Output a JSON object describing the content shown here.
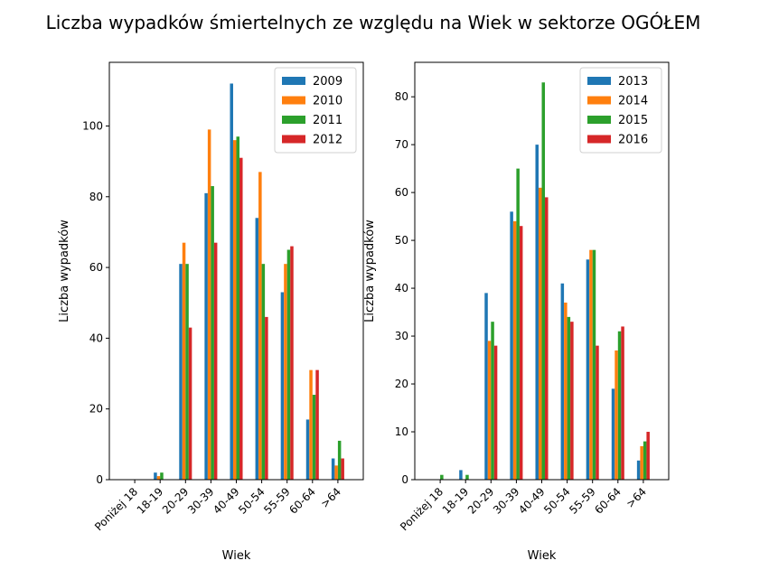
{
  "figure": {
    "title": "Liczba wypadków śmiertelnych ze względu na Wiek w sektorze OGÓŁEM"
  },
  "chart_data": [
    {
      "type": "bar",
      "title": "",
      "xlabel": "Wiek",
      "ylabel": "Liczba wypadków",
      "categories": [
        "Poniżej 18",
        "18-19",
        "20-29",
        "30-39",
        "40-49",
        "50-54",
        "55-59",
        "60-64",
        ">64"
      ],
      "ylim": [
        0,
        118
      ],
      "yticks": [
        0,
        20,
        40,
        60,
        80,
        100
      ],
      "legend_position": "top-right",
      "series": [
        {
          "name": "2009",
          "color": "#1f77b4",
          "values": [
            0,
            2,
            61,
            81,
            112,
            74,
            53,
            17,
            6
          ]
        },
        {
          "name": "2010",
          "color": "#ff7f0e",
          "values": [
            0,
            1,
            67,
            99,
            96,
            87,
            61,
            31,
            4
          ]
        },
        {
          "name": "2011",
          "color": "#2ca02c",
          "values": [
            0,
            2,
            61,
            83,
            97,
            61,
            65,
            24,
            11
          ]
        },
        {
          "name": "2012",
          "color": "#d62728",
          "values": [
            0,
            0,
            43,
            67,
            91,
            46,
            66,
            31,
            6
          ]
        }
      ]
    },
    {
      "type": "bar",
      "title": "",
      "xlabel": "Wiek",
      "ylabel": "Liczba wypadków",
      "categories": [
        "Poniżej 18",
        "18-19",
        "20-29",
        "30-39",
        "40-49",
        "50-54",
        "55-59",
        "60-64",
        ">64"
      ],
      "ylim": [
        0,
        87.2
      ],
      "yticks": [
        0,
        10,
        20,
        30,
        40,
        50,
        60,
        70,
        80
      ],
      "legend_position": "top-right",
      "series": [
        {
          "name": "2013",
          "color": "#1f77b4",
          "values": [
            0,
            2,
            39,
            56,
            70,
            41,
            46,
            19,
            4
          ]
        },
        {
          "name": "2014",
          "color": "#ff7f0e",
          "values": [
            0,
            0,
            29,
            54,
            61,
            37,
            48,
            27,
            7
          ]
        },
        {
          "name": "2015",
          "color": "#2ca02c",
          "values": [
            1,
            1,
            33,
            65,
            83,
            34,
            48,
            31,
            8
          ]
        },
        {
          "name": "2016",
          "color": "#d62728",
          "values": [
            0,
            0,
            28,
            53,
            59,
            33,
            28,
            32,
            10
          ]
        }
      ]
    }
  ]
}
